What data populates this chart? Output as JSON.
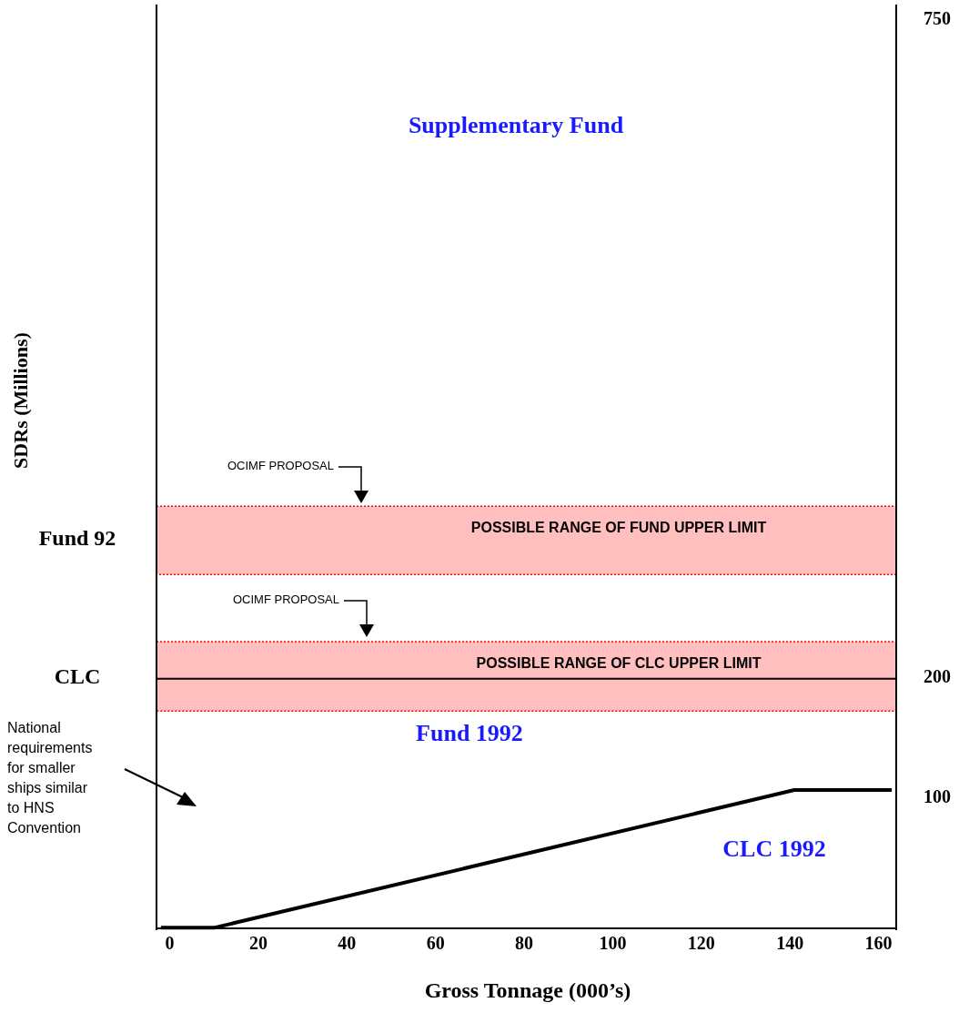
{
  "chart_data": {
    "type": "line",
    "xlabel": "Gross Tonnage (000’s)",
    "x": [
      -2,
      10,
      141,
      163
    ],
    "series": [
      {
        "color": "#000000",
        "values": [
          -8,
          -8,
          107,
          107
        ]
      }
    ],
    "xlim": [
      -3,
      164
    ],
    "xticks": [
      0,
      20,
      40,
      60,
      80,
      100,
      120,
      140,
      160
    ],
    "ylim": [
      -10,
      763
    ],
    "yticks": [
      100,
      200,
      750
    ],
    "grid": false,
    "marker": "none",
    "line_style": "solid",
    "ref_lines": [
      {
        "axis": "y",
        "value": 200,
        "label": "CLC",
        "color": "#000000"
      }
    ],
    "bands": [
      {
        "axis": "y",
        "from": 287,
        "to": 344,
        "label": "POSSIBLE RANGE OF FUND UPPER LIMIT",
        "color": "#ffbfbf"
      },
      {
        "axis": "y",
        "from": 173,
        "to": 231,
        "label": "POSSIBLE RANGE OF CLC UPPER LIMIT",
        "color": "#ffbfbf"
      }
    ],
    "annotations": [
      "Supplementary Fund",
      "Fund  1992",
      "CLC 1992",
      "Fund 92",
      "OCIMF PROPOSAL",
      "OCIMF PROPOSAL",
      "National requirements for smaller ships similar to HNS Convention",
      "SDRs (Millions)"
    ]
  }
}
